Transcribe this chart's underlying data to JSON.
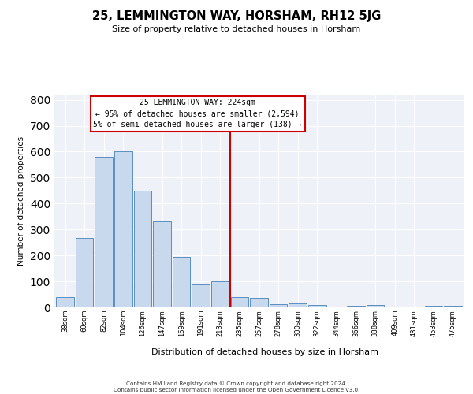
{
  "title": "25, LEMMINGTON WAY, HORSHAM, RH12 5JG",
  "subtitle": "Size of property relative to detached houses in Horsham",
  "xlabel": "Distribution of detached houses by size in Horsham",
  "ylabel": "Number of detached properties",
  "categories": [
    "38sqm",
    "60sqm",
    "82sqm",
    "104sqm",
    "126sqm",
    "147sqm",
    "169sqm",
    "191sqm",
    "213sqm",
    "235sqm",
    "257sqm",
    "278sqm",
    "300sqm",
    "322sqm",
    "344sqm",
    "366sqm",
    "388sqm",
    "409sqm",
    "431sqm",
    "453sqm",
    "475sqm"
  ],
  "values": [
    38,
    267,
    580,
    601,
    451,
    330,
    195,
    88,
    101,
    38,
    35,
    12,
    15,
    10,
    0,
    7,
    10,
    0,
    0,
    5,
    7
  ],
  "bar_color": "#c9d9ed",
  "bar_edge_color": "#5a8fc0",
  "vline_color": "#cc0000",
  "annotation_text": "25 LEMMINGTON WAY: 224sqm\n← 95% of detached houses are smaller (2,594)\n5% of semi-detached houses are larger (138) →",
  "annotation_box_color": "#cc0000",
  "footer": "Contains HM Land Registry data © Crown copyright and database right 2024.\nContains public sector information licensed under the Open Government Licence v3.0.",
  "ylim": [
    0,
    820
  ],
  "background_color": "#eef2f8",
  "grid_color": "#ffffff"
}
